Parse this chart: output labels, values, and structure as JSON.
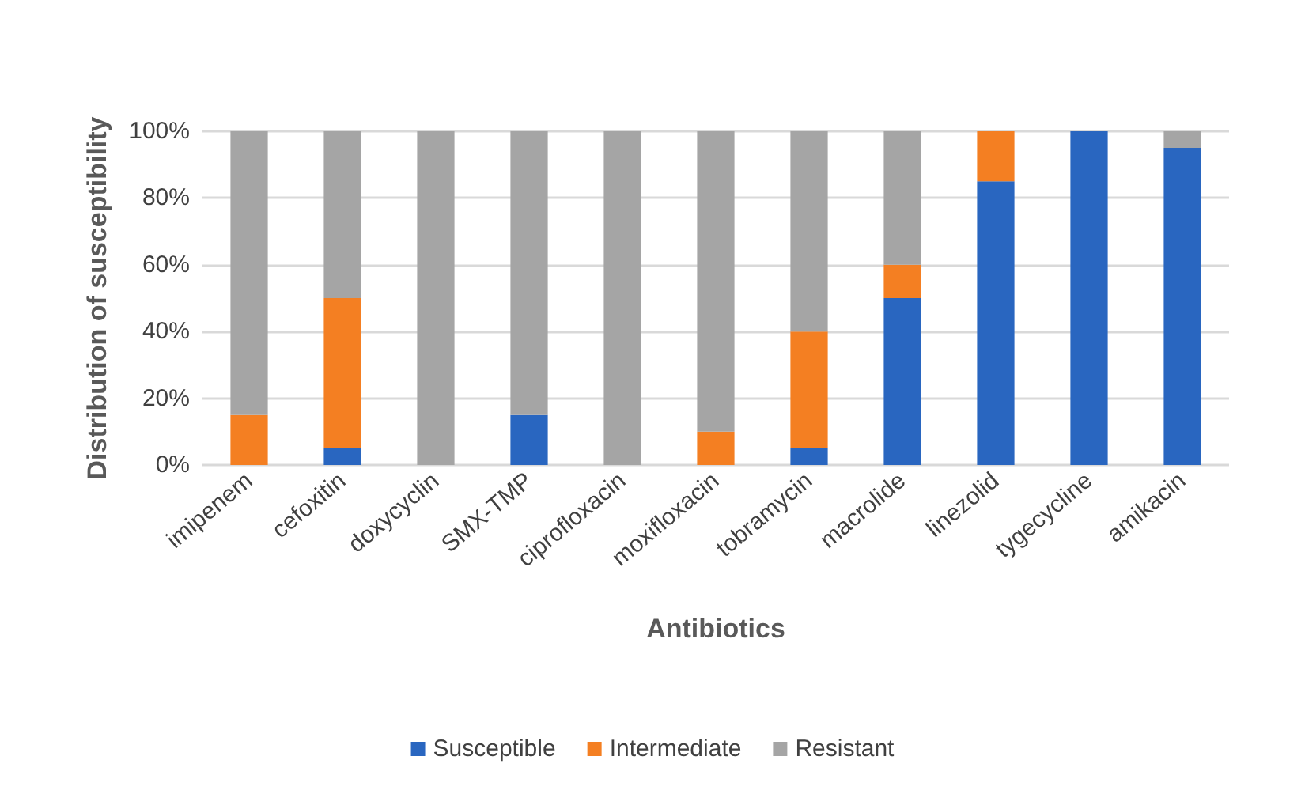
{
  "chart_data": {
    "type": "bar",
    "stacked": true,
    "xlabel": "Antibiotics",
    "ylabel": "Distribution of susceptibility",
    "categories": [
      "imipenem",
      "cefoxitin",
      "doxycyclin",
      "SMX-TMP",
      "ciprofloxacin",
      "moxifloxacin",
      "tobramycin",
      "macrolide",
      "linezolid",
      "tygecycline",
      "amikacin"
    ],
    "series": [
      {
        "name": "Susceptible",
        "color": "#2966c0",
        "values": [
          0,
          5,
          0,
          15,
          0,
          0,
          5,
          50,
          85,
          100,
          95
        ]
      },
      {
        "name": "Intermediate",
        "color": "#f47f22",
        "values": [
          15,
          45,
          0,
          0,
          0,
          10,
          35,
          10,
          15,
          0,
          0
        ]
      },
      {
        "name": "Resistant",
        "color": "#a5a5a5",
        "values": [
          85,
          50,
          100,
          85,
          100,
          90,
          60,
          40,
          0,
          0,
          5
        ]
      }
    ],
    "ylim": [
      0,
      100
    ],
    "yticks": [
      {
        "value": 0,
        "label": "0%"
      },
      {
        "value": 20,
        "label": "20%"
      },
      {
        "value": 40,
        "label": "40%"
      },
      {
        "value": 60,
        "label": "60%"
      },
      {
        "value": 80,
        "label": "80%"
      },
      {
        "value": 100,
        "label": "100%"
      }
    ],
    "grid": "y",
    "legend": "bottom"
  }
}
